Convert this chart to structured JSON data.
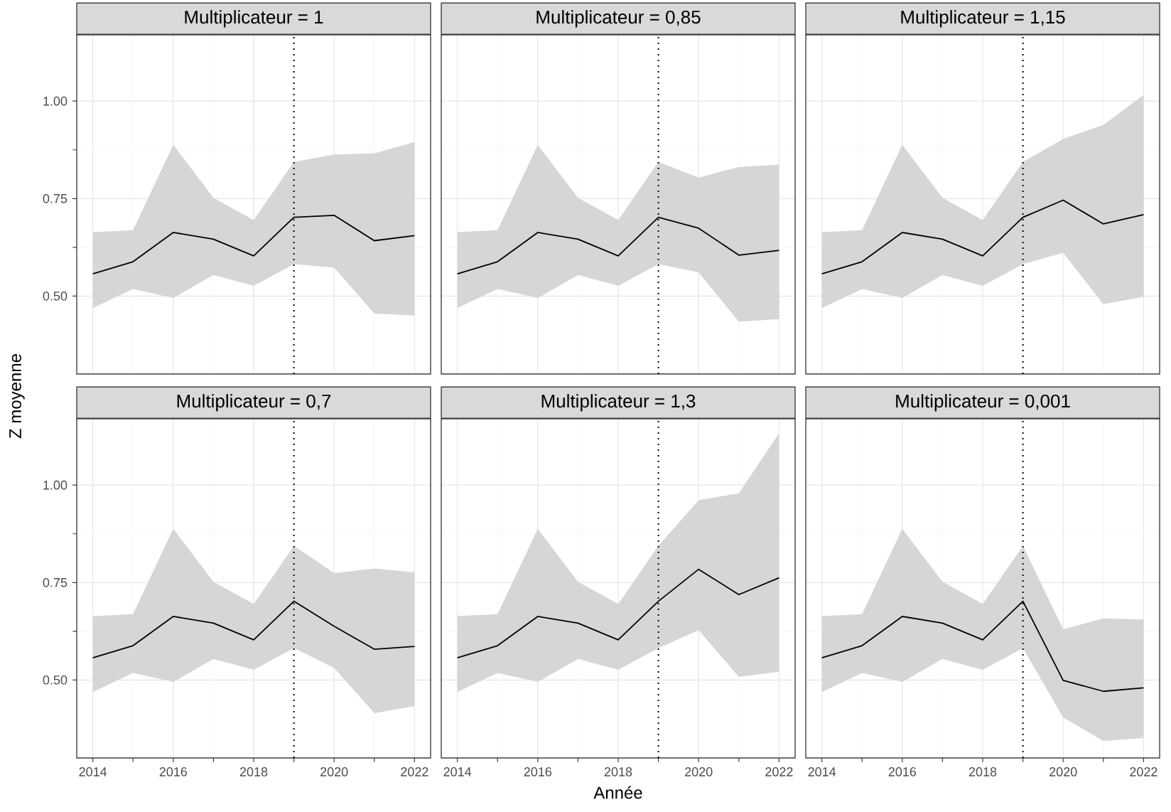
{
  "chart_data": [
    {
      "type": "line",
      "title": "Multiplicateur = 1",
      "ylabel": "Z moyenne",
      "x": [
        2014,
        2015,
        2016,
        2017,
        2018,
        2019,
        2020,
        2021,
        2022
      ],
      "series": [
        {
          "color": "#000000",
          "values": [
            0.557,
            0.588,
            0.663,
            0.646,
            0.603,
            0.702,
            0.707,
            0.642,
            0.655
          ],
          "lower": [
            0.469,
            0.518,
            0.495,
            0.554,
            0.526,
            0.582,
            0.573,
            0.455,
            0.45
          ],
          "upper": [
            0.664,
            0.669,
            0.888,
            0.752,
            0.695,
            0.844,
            0.863,
            0.866,
            0.895
          ]
        }
      ],
      "ref_lines": [
        {
          "axis": "x",
          "value": 2019,
          "color": "#000000",
          "line_style": "dotted"
        }
      ],
      "xlim": [
        2013.6,
        2022.4
      ],
      "ylim": [
        0.3,
        1.17
      ],
      "xticks": [
        2014,
        2016,
        2018,
        2020,
        2022
      ],
      "yticks": [
        {
          "value": 0.5,
          "label": "0.50"
        },
        {
          "value": 0.75,
          "label": "0.75"
        },
        {
          "value": 1.0,
          "label": "1.00"
        }
      ],
      "grid": true,
      "tick_labels": "y",
      "marker": "none",
      "line_style": "solid"
    },
    {
      "type": "line",
      "title": "Multiplicateur = 0,85",
      "x": [
        2014,
        2015,
        2016,
        2017,
        2018,
        2019,
        2020,
        2021,
        2022
      ],
      "series": [
        {
          "color": "#000000",
          "values": [
            0.557,
            0.588,
            0.663,
            0.646,
            0.603,
            0.702,
            0.674,
            0.605,
            0.617
          ],
          "lower": [
            0.469,
            0.518,
            0.495,
            0.554,
            0.526,
            0.582,
            0.561,
            0.434,
            0.441
          ],
          "upper": [
            0.664,
            0.669,
            0.888,
            0.752,
            0.695,
            0.844,
            0.804,
            0.831,
            0.837
          ]
        }
      ],
      "ref_lines": [
        {
          "axis": "x",
          "value": 2019,
          "color": "#000000",
          "line_style": "dotted"
        }
      ],
      "xlim": [
        2013.6,
        2022.4
      ],
      "ylim": [
        0.3,
        1.17
      ],
      "xticks": [
        2014,
        2016,
        2018,
        2020,
        2022
      ],
      "yticks": [
        {
          "value": 0.5,
          "label": null
        },
        {
          "value": 0.75,
          "label": null
        },
        {
          "value": 1.0,
          "label": null
        }
      ],
      "grid": true,
      "tick_labels": false,
      "marker": "none",
      "line_style": "solid"
    },
    {
      "type": "line",
      "title": "Multiplicateur = 1,15",
      "x": [
        2014,
        2015,
        2016,
        2017,
        2018,
        2019,
        2020,
        2021,
        2022
      ],
      "series": [
        {
          "color": "#000000",
          "values": [
            0.557,
            0.588,
            0.663,
            0.646,
            0.603,
            0.702,
            0.746,
            0.685,
            0.709
          ],
          "lower": [
            0.469,
            0.518,
            0.495,
            0.554,
            0.526,
            0.582,
            0.611,
            0.479,
            0.498
          ],
          "upper": [
            0.664,
            0.669,
            0.888,
            0.752,
            0.695,
            0.844,
            0.903,
            0.939,
            1.016
          ]
        }
      ],
      "ref_lines": [
        {
          "axis": "x",
          "value": 2019,
          "color": "#000000",
          "line_style": "dotted"
        }
      ],
      "xlim": [
        2013.6,
        2022.4
      ],
      "ylim": [
        0.3,
        1.17
      ],
      "xticks": [
        2014,
        2016,
        2018,
        2020,
        2022
      ],
      "yticks": [
        {
          "value": 0.5,
          "label": null
        },
        {
          "value": 0.75,
          "label": null
        },
        {
          "value": 1.0,
          "label": null
        }
      ],
      "grid": true,
      "tick_labels": false,
      "marker": "none",
      "line_style": "solid"
    },
    {
      "type": "line",
      "title": "Multiplicateur = 0,7",
      "x": [
        2014,
        2015,
        2016,
        2017,
        2018,
        2019,
        2020,
        2021,
        2022
      ],
      "series": [
        {
          "color": "#000000",
          "values": [
            0.557,
            0.588,
            0.663,
            0.646,
            0.603,
            0.702,
            0.638,
            0.579,
            0.586
          ],
          "lower": [
            0.469,
            0.518,
            0.495,
            0.554,
            0.526,
            0.582,
            0.531,
            0.415,
            0.433
          ],
          "upper": [
            0.664,
            0.669,
            0.888,
            0.752,
            0.695,
            0.844,
            0.774,
            0.786,
            0.776
          ]
        }
      ],
      "ref_lines": [
        {
          "axis": "x",
          "value": 2019,
          "color": "#000000",
          "line_style": "dotted"
        }
      ],
      "xlim": [
        2013.6,
        2022.4
      ],
      "ylim": [
        0.3,
        1.17
      ],
      "xticks": [
        2014,
        2016,
        2018,
        2020,
        2022
      ],
      "yticks": [
        {
          "value": 0.5,
          "label": "0.50"
        },
        {
          "value": 0.75,
          "label": "0.75"
        },
        {
          "value": 1.0,
          "label": "1.00"
        }
      ],
      "grid": true,
      "marker": "none",
      "line_style": "solid"
    },
    {
      "type": "line",
      "title": "Multiplicateur = 1,3",
      "xlabel": "Année",
      "x": [
        2014,
        2015,
        2016,
        2017,
        2018,
        2019,
        2020,
        2021,
        2022
      ],
      "series": [
        {
          "color": "#000000",
          "values": [
            0.557,
            0.588,
            0.663,
            0.646,
            0.603,
            0.702,
            0.784,
            0.719,
            0.762
          ],
          "lower": [
            0.469,
            0.518,
            0.495,
            0.554,
            0.526,
            0.582,
            0.628,
            0.508,
            0.521
          ],
          "upper": [
            0.664,
            0.669,
            0.888,
            0.752,
            0.695,
            0.844,
            0.961,
            0.979,
            1.133
          ]
        }
      ],
      "ref_lines": [
        {
          "axis": "x",
          "value": 2019,
          "color": "#000000",
          "line_style": "dotted"
        }
      ],
      "xlim": [
        2013.6,
        2022.4
      ],
      "ylim": [
        0.3,
        1.17
      ],
      "xticks": [
        2014,
        2016,
        2018,
        2020,
        2022
      ],
      "yticks": [
        {
          "value": 0.5,
          "label": null
        },
        {
          "value": 0.75,
          "label": null
        },
        {
          "value": 1.0,
          "label": null
        }
      ],
      "grid": true,
      "tick_labels": "x",
      "marker": "none",
      "line_style": "solid"
    },
    {
      "type": "line",
      "title": "Multiplicateur = 0,001",
      "x": [
        2014,
        2015,
        2016,
        2017,
        2018,
        2019,
        2020,
        2021,
        2022
      ],
      "series": [
        {
          "color": "#000000",
          "values": [
            0.557,
            0.588,
            0.663,
            0.646,
            0.603,
            0.702,
            0.499,
            0.471,
            0.48
          ],
          "lower": [
            0.469,
            0.518,
            0.495,
            0.554,
            0.526,
            0.582,
            0.404,
            0.344,
            0.351
          ],
          "upper": [
            0.664,
            0.669,
            0.888,
            0.752,
            0.695,
            0.844,
            0.63,
            0.658,
            0.655
          ]
        }
      ],
      "ref_lines": [
        {
          "axis": "x",
          "value": 2019,
          "color": "#000000",
          "line_style": "dotted"
        }
      ],
      "xlim": [
        2013.6,
        2022.4
      ],
      "ylim": [
        0.3,
        1.17
      ],
      "xticks": [
        2014,
        2016,
        2018,
        2020,
        2022
      ],
      "yticks": [
        {
          "value": 0.5,
          "label": null
        },
        {
          "value": 0.75,
          "label": null
        },
        {
          "value": 1.0,
          "label": null
        }
      ],
      "grid": true,
      "tick_labels": "x",
      "marker": "none",
      "line_style": "solid"
    }
  ]
}
